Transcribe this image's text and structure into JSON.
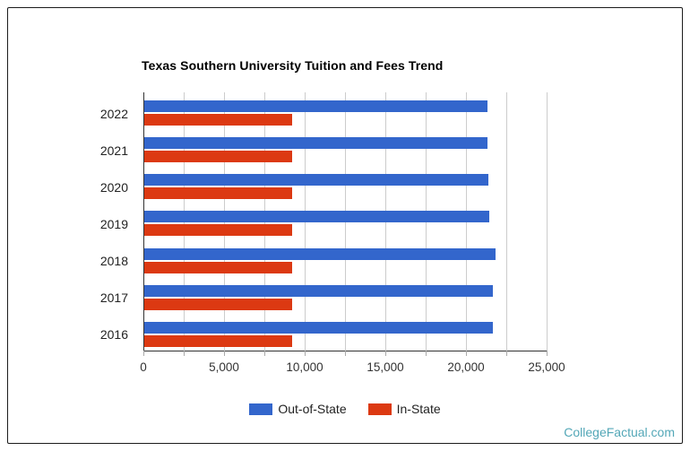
{
  "page": {
    "footer": {
      "text": "CollegeFactual.com",
      "color": "#53a7b7"
    }
  },
  "chart_data": {
    "type": "bar",
    "orientation": "horizontal",
    "title": "Texas Southern University Tuition and Fees Trend",
    "categories": [
      "2022",
      "2021",
      "2020",
      "2019",
      "2018",
      "2017",
      "2016"
    ],
    "series": [
      {
        "name": "Out-of-State",
        "color": "#3366cc",
        "values": [
          21250,
          21300,
          21350,
          21400,
          21800,
          21600,
          21600
        ]
      },
      {
        "name": "In-State",
        "color": "#dc3912",
        "values": [
          9173,
          9173,
          9173,
          9173,
          9173,
          9173,
          9173
        ]
      }
    ],
    "xlim": [
      0,
      25000
    ],
    "x_gridline_step": 2500,
    "x_ticks": [
      {
        "value": 0,
        "label": "0"
      },
      {
        "value": 5000,
        "label": "5,000"
      },
      {
        "value": 10000,
        "label": "10,000"
      },
      {
        "value": 15000,
        "label": "15,000"
      },
      {
        "value": 20000,
        "label": "20,000"
      },
      {
        "value": 25000,
        "label": "25,000"
      }
    ],
    "grid": true,
    "legend_position": "bottom",
    "axis_color": "#333333",
    "gridline_color": "#cccccc",
    "label_color": "#222222"
  }
}
